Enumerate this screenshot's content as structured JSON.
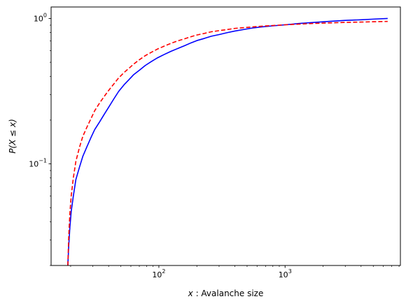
{
  "chart_data": {
    "type": "line",
    "title": "",
    "xlabel": "x :  Avalanche size",
    "ylabel": "P(X ≤ x)",
    "xscale": "log",
    "yscale": "log",
    "xlim": [
      14,
      8200
    ],
    "ylim": [
      0.02,
      1.2
    ],
    "grid": false,
    "legend": "none",
    "x_ticks": [
      {
        "value": 100,
        "base": "10",
        "exp": "2"
      },
      {
        "value": 1000,
        "base": "10",
        "exp": "3"
      }
    ],
    "y_ticks": [
      {
        "value": 0.1,
        "base": "10",
        "exp": "−1"
      },
      {
        "value": 1,
        "base": "10",
        "exp": "0"
      }
    ],
    "series": [
      {
        "color": "#0000ff",
        "style": "solid",
        "x": [
          19,
          19.3,
          19.7,
          20.2,
          21,
          22,
          23.5,
          25,
          27,
          29,
          31,
          34,
          37,
          40,
          44,
          48,
          53,
          58,
          63,
          70,
          78,
          87,
          97,
          110,
          125,
          140,
          160,
          180,
          200,
          230,
          260,
          300,
          350,
          400,
          470,
          550,
          650,
          800,
          1000,
          1300,
          1700,
          2200,
          3000,
          4000,
          5000,
          6500
        ],
        "y": [
          0.02,
          0.027,
          0.036,
          0.047,
          0.06,
          0.078,
          0.095,
          0.113,
          0.132,
          0.152,
          0.172,
          0.195,
          0.22,
          0.245,
          0.28,
          0.315,
          0.35,
          0.38,
          0.41,
          0.44,
          0.475,
          0.505,
          0.535,
          0.565,
          0.595,
          0.62,
          0.65,
          0.68,
          0.705,
          0.73,
          0.755,
          0.775,
          0.8,
          0.82,
          0.84,
          0.86,
          0.875,
          0.89,
          0.905,
          0.925,
          0.94,
          0.955,
          0.97,
          0.98,
          0.99,
          1.0
        ]
      },
      {
        "color": "#ff0000",
        "style": "dashed",
        "x": [
          19,
          19.3,
          19.7,
          20.2,
          21,
          22,
          23.5,
          25,
          27,
          29,
          31,
          34,
          37,
          40,
          44,
          48,
          53,
          58,
          63,
          70,
          78,
          87,
          97,
          110,
          125,
          140,
          160,
          180,
          200,
          230,
          260,
          300,
          350,
          400,
          470,
          550,
          650,
          800,
          1000,
          1300,
          1700,
          2200,
          3000,
          4000,
          5000,
          6500
        ],
        "y": [
          0.02,
          0.031,
          0.045,
          0.06,
          0.08,
          0.104,
          0.13,
          0.155,
          0.18,
          0.205,
          0.232,
          0.263,
          0.292,
          0.32,
          0.355,
          0.39,
          0.425,
          0.455,
          0.485,
          0.52,
          0.555,
          0.585,
          0.615,
          0.645,
          0.675,
          0.7,
          0.725,
          0.75,
          0.77,
          0.79,
          0.81,
          0.825,
          0.84,
          0.855,
          0.865,
          0.875,
          0.885,
          0.895,
          0.905,
          0.915,
          0.925,
          0.932,
          0.94,
          0.945,
          0.95,
          0.955
        ]
      }
    ]
  }
}
